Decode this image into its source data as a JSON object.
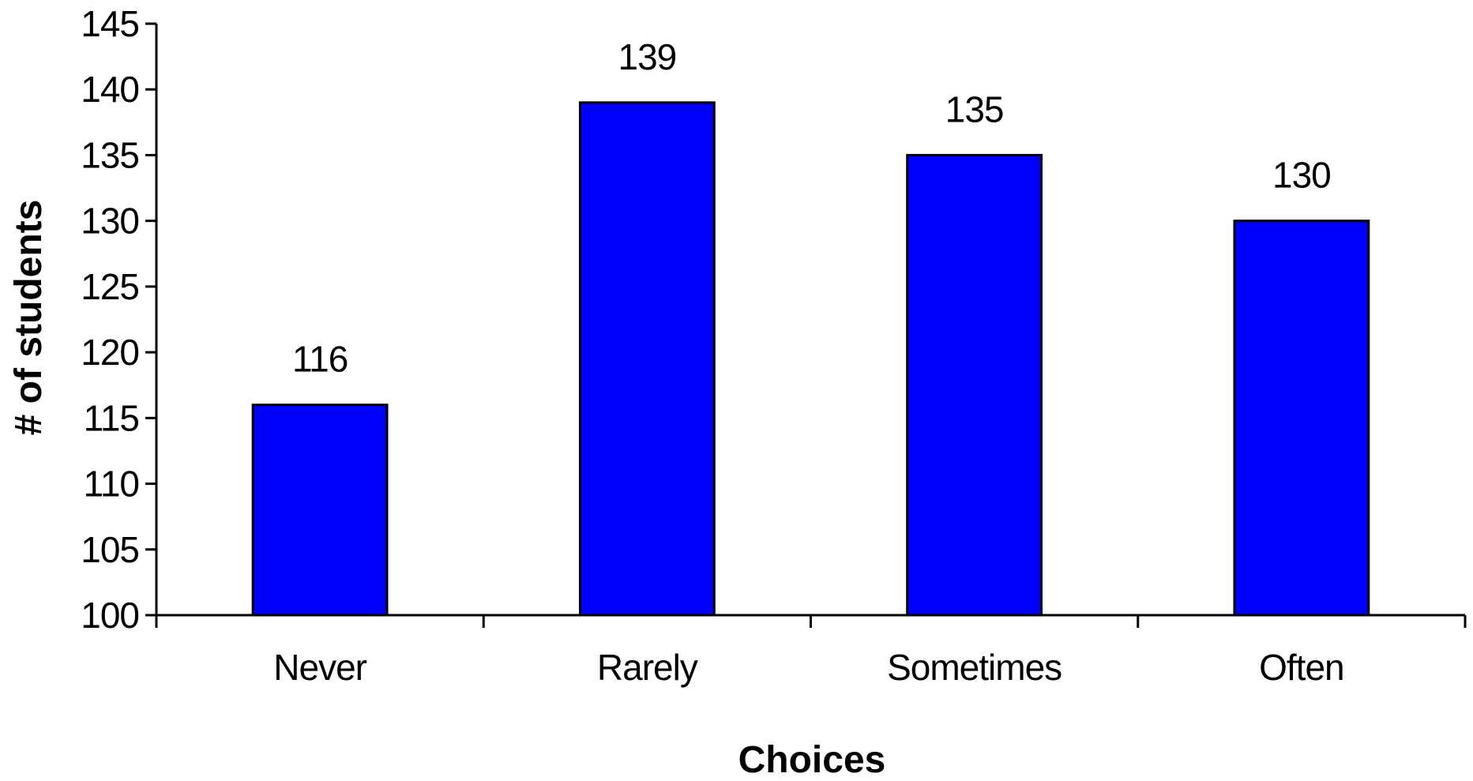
{
  "chart_data": {
    "type": "bar",
    "categories": [
      "Never",
      "Rarely",
      "Sometimes",
      "Often"
    ],
    "values": [
      116,
      139,
      135,
      130
    ],
    "data_labels": [
      "116",
      "139",
      "135",
      "130"
    ],
    "title": "",
    "xlabel": "Choices",
    "ylabel": "# of students",
    "ylim": [
      100,
      145
    ],
    "yticks": [
      100,
      105,
      110,
      115,
      120,
      125,
      130,
      135,
      140,
      145
    ],
    "ytick_labels": [
      "100",
      "105",
      "110",
      "115",
      "120",
      "125",
      "130",
      "135",
      "140",
      "145"
    ],
    "grid": false,
    "legend": "none",
    "bar_color": "#0000FF",
    "bar_edge_color": "#000000"
  }
}
